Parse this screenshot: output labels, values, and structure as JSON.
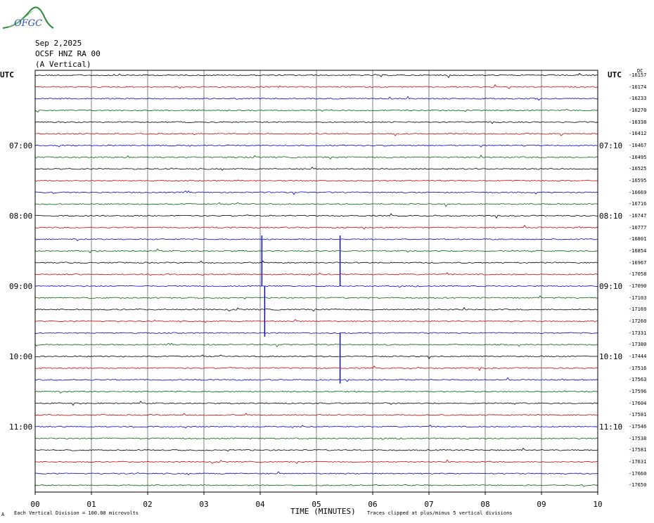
{
  "logo": {
    "text": "OFGC"
  },
  "header": {
    "date": "Sep 2,2025",
    "station": "OCSF HNZ RA 00",
    "component": "(A Vertical)"
  },
  "labels": {
    "utc_left": "UTC",
    "utc_right": "UTC",
    "dc": "DC",
    "xlabel": "TIME (MINUTES)",
    "footnote_left": "Each Vertical Division =  100.00 microvolts",
    "footnote_right": "Traces clipped at plus/minus 5 vertical divisions",
    "corner_mark": "A"
  },
  "colors": {
    "trace_cycle": [
      "#000000",
      "#d00000",
      "#0000d0",
      "#006400"
    ],
    "grid": "#808080"
  },
  "chart_data": {
    "type": "line",
    "title": "",
    "x_ticks": [
      "00",
      "01",
      "02",
      "03",
      "04",
      "05",
      "06",
      "07",
      "08",
      "09",
      "10"
    ],
    "xlim": [
      0,
      10
    ],
    "left_time_labels": [
      "07:00",
      "08:00",
      "09:00",
      "10:00",
      "11:00"
    ],
    "right_time_labels": [
      "07:10",
      "08:10",
      "09:10",
      "10:10",
      "11:10"
    ],
    "time_label_rows": [
      6,
      12,
      18,
      24,
      30
    ],
    "trace_count": 36,
    "dc_offsets": [
      "-16157",
      "-16174",
      "-16233",
      "-16270",
      "-16338",
      "-16412",
      "-16467",
      "-16495",
      "-16525",
      "-16595",
      "-16669",
      "-16716",
      "-16747",
      "-16777",
      "-16801",
      "-16854",
      "-16967",
      "-17058",
      "-17090",
      "-17103",
      "-17169",
      "-17260",
      "-17331",
      "-17380",
      "-17444",
      "-17516",
      "-17563",
      "-17596",
      "-17604",
      "-17581",
      "-17546",
      "-17538",
      "-17581",
      "-17631",
      "-17660",
      "-17650"
    ],
    "events": [
      {
        "trace": 18,
        "minute": 4.03,
        "amplitude": 5,
        "note": "clipped spike"
      },
      {
        "trace": 18,
        "minute": 4.08,
        "amplitude": -5,
        "note": "clipped spike"
      },
      {
        "trace": 18,
        "minute": 5.42,
        "amplitude": 5,
        "note": "clipped spike"
      },
      {
        "trace": 22,
        "minute": 5.42,
        "amplitude": -5,
        "note": "clipped spike"
      }
    ]
  }
}
